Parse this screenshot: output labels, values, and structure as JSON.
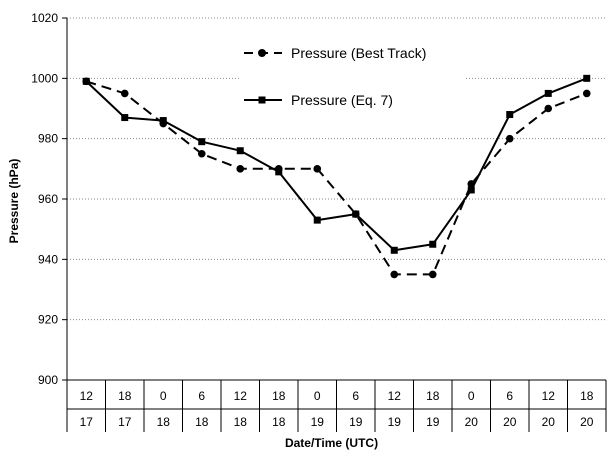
{
  "chart_data": {
    "type": "line",
    "title": "",
    "ylabel": "Pressure (hPa)",
    "xlabel": "Date/Time (UTC)",
    "ylim": [
      900,
      1020
    ],
    "yticks": [
      900,
      920,
      940,
      960,
      980,
      1000,
      1020
    ],
    "grid": true,
    "legend_position": "top-center",
    "categories": [
      {
        "time": "12",
        "day": "17"
      },
      {
        "time": "18",
        "day": "17"
      },
      {
        "time": "0",
        "day": "18"
      },
      {
        "time": "6",
        "day": "18"
      },
      {
        "time": "12",
        "day": "18"
      },
      {
        "time": "18",
        "day": "18"
      },
      {
        "time": "0",
        "day": "19"
      },
      {
        "time": "6",
        "day": "19"
      },
      {
        "time": "12",
        "day": "19"
      },
      {
        "time": "18",
        "day": "19"
      },
      {
        "time": "0",
        "day": "20"
      },
      {
        "time": "6",
        "day": "20"
      },
      {
        "time": "12",
        "day": "20"
      },
      {
        "time": "18",
        "day": "20"
      }
    ],
    "series": [
      {
        "name": "Pressure (Best Track)",
        "marker": "circle",
        "dash": true,
        "color": "#000000",
        "values": [
          999,
          995,
          985,
          975,
          970,
          970,
          970,
          955,
          935,
          935,
          965,
          980,
          990,
          995
        ]
      },
      {
        "name": "Pressure (Eq. 7)",
        "marker": "square",
        "dash": false,
        "color": "#000000",
        "values": [
          999,
          987,
          986,
          979,
          976,
          969,
          953,
          955,
          943,
          945,
          963,
          988,
          995,
          1000
        ]
      }
    ]
  }
}
